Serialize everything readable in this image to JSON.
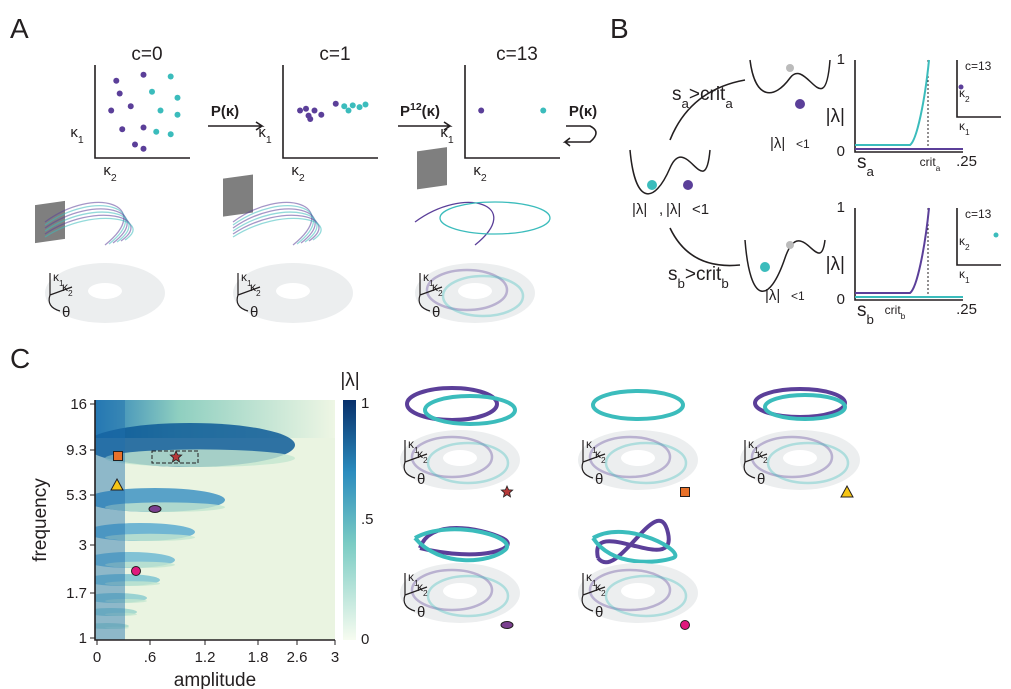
{
  "panel_A": {
    "label": "A",
    "plots": [
      {
        "title": "c=0",
        "ylabel": [
          "κ",
          {
            "sub": "1"
          }
        ],
        "xlabel": [
          "κ",
          {
            "sub": "2"
          }
        ]
      },
      {
        "title": "c=1",
        "ylabel": [
          "κ",
          {
            "sub": "1"
          }
        ],
        "xlabel": [
          "κ",
          {
            "sub": "2"
          }
        ]
      },
      {
        "title": "c=13",
        "ylabel": [
          "κ",
          {
            "sub": "1"
          }
        ],
        "xlabel": [
          "κ",
          {
            "sub": "2"
          }
        ]
      }
    ],
    "maps": [
      [
        "P(κ)"
      ],
      [
        "P",
        {
          "sup": "12"
        },
        "(κ)"
      ],
      [
        "P(κ)"
      ]
    ],
    "tori": [
      {
        "k1": [
          "κ",
          {
            "sub": "1"
          }
        ],
        "k2": [
          "κ",
          {
            "sub": "2"
          }
        ],
        "theta": "θ"
      },
      {
        "k1": [
          "κ",
          {
            "sub": "1"
          }
        ],
        "k2": [
          "κ",
          {
            "sub": "2"
          }
        ],
        "theta": "θ"
      },
      {
        "k1": [
          "κ",
          {
            "sub": "1"
          }
        ],
        "k2": [
          "κ",
          {
            "sub": "2"
          }
        ],
        "theta": "θ"
      }
    ]
  },
  "panel_B": {
    "label": "B",
    "initial": [
      "|λ|",
      ",",
      "|λ|",
      "<1"
    ],
    "cases": [
      {
        "condition": [
          "s",
          {
            "sub": "a"
          },
          ">crit",
          {
            "sub": "a"
          }
        ],
        "result": [
          "|λ|",
          "<1"
        ],
        "plot": {
          "ylabel": "|λ|",
          "yticks": [
            "1",
            "0"
          ],
          "xticks": [
            [
              "s",
              {
                "sub": "a"
              }
            ],
            [
              "crit",
              {
                "sub": "a"
              }
            ],
            ".25"
          ],
          "inset": {
            "title": "c=13",
            "ylabel": [
              "κ",
              {
                "sub": "2"
              }
            ],
            "xlabel": [
              "κ",
              {
                "sub": "1"
              }
            ]
          }
        }
      },
      {
        "condition": [
          "s",
          {
            "sub": "b"
          },
          ">crit",
          {
            "sub": "b"
          }
        ],
        "result": [
          "|λ|",
          "<1"
        ],
        "plot": {
          "ylabel": "|λ|",
          "yticks": [
            "1",
            "0"
          ],
          "xticks": [
            [
              "s",
              {
                "sub": "b"
              }
            ],
            [
              "crit",
              {
                "sub": "b"
              }
            ],
            ".25"
          ],
          "inset": {
            "title": "c=13",
            "ylabel": [
              "κ",
              {
                "sub": "2"
              }
            ],
            "xlabel": [
              "κ",
              {
                "sub": "1"
              }
            ]
          }
        }
      }
    ]
  },
  "panel_C": {
    "label": "C",
    "heatmap": {
      "xlabel": "amplitude",
      "ylabel": "frequency",
      "xticks": [
        "0",
        ".6",
        "1.2",
        "1.8",
        "2.6",
        "3"
      ],
      "yticks": [
        "16",
        "9.3",
        "5.3",
        "3",
        "1.7",
        "1"
      ],
      "colorbar": {
        "label": "|λ|",
        "ticks": [
          "1",
          ".5",
          "0"
        ]
      }
    },
    "tori": [
      {
        "k1": [
          "κ",
          {
            "sub": "1"
          }
        ],
        "k2": [
          "κ",
          {
            "sub": "2"
          }
        ],
        "theta": "θ"
      },
      {
        "k1": [
          "κ",
          {
            "sub": "1"
          }
        ],
        "k2": [
          "κ",
          {
            "sub": "2"
          }
        ],
        "theta": "θ"
      },
      {
        "k1": [
          "κ",
          {
            "sub": "1"
          }
        ],
        "k2": [
          "κ",
          {
            "sub": "2"
          }
        ],
        "theta": "θ"
      },
      {
        "k1": [
          "κ",
          {
            "sub": "1"
          }
        ],
        "k2": [
          "κ",
          {
            "sub": "2"
          }
        ],
        "theta": "θ"
      },
      {
        "k1": [
          "κ",
          {
            "sub": "1"
          }
        ],
        "k2": [
          "κ",
          {
            "sub": "2"
          }
        ],
        "theta": "θ"
      }
    ]
  }
}
